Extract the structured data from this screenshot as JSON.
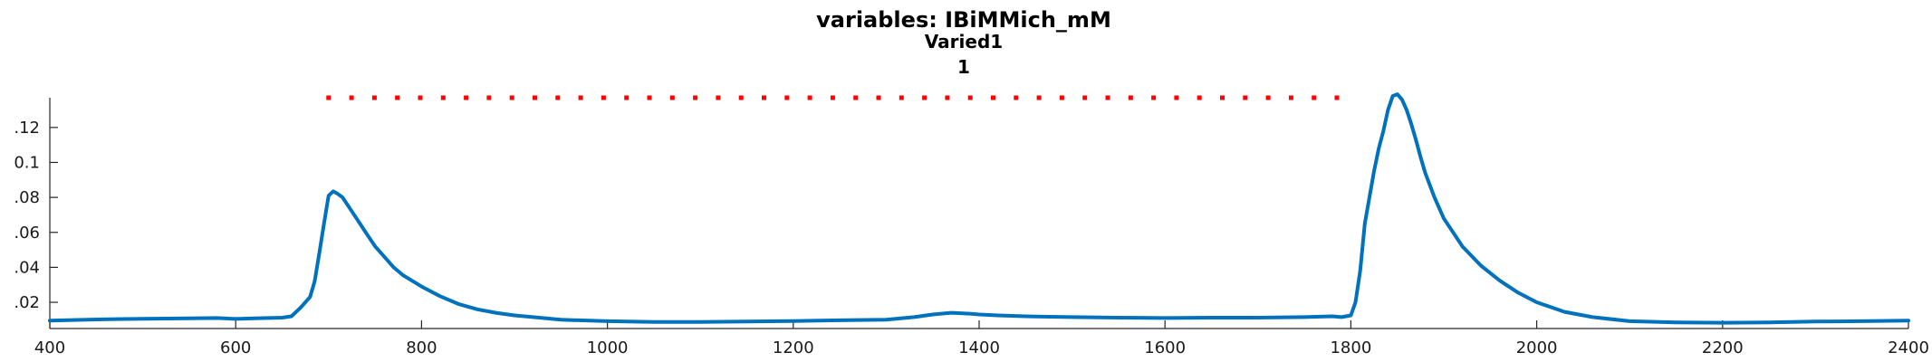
{
  "chart_data": {
    "type": "line",
    "title": "variables: IBiMMich_mM",
    "subtitle": "Varied1",
    "subtitle2": "1",
    "xlabel": "",
    "ylabel": "",
    "xlim": [
      400,
      2400
    ],
    "ylim": [
      0.005,
      0.137
    ],
    "xticks": [
      400,
      600,
      800,
      1000,
      1200,
      1400,
      1600,
      1800,
      2000,
      2200,
      2400
    ],
    "yticks": [
      0.02,
      0.04,
      0.06,
      0.08,
      0.1,
      0.12
    ],
    "ytick_labels": [
      ".02",
      ".04",
      ".06",
      ".08",
      "0.1",
      ".12"
    ],
    "grid": false,
    "series": [
      {
        "color": "#0072BD",
        "style": "solid",
        "x": [
          400,
          450,
          500,
          550,
          580,
          600,
          620,
          650,
          660,
          670,
          680,
          685,
          690,
          695,
          700,
          705,
          710,
          715,
          720,
          730,
          740,
          750,
          760,
          770,
          780,
          800,
          820,
          840,
          860,
          880,
          900,
          920,
          950,
          1000,
          1050,
          1100,
          1150,
          1200,
          1250,
          1300,
          1330,
          1350,
          1370,
          1390,
          1400,
          1420,
          1450,
          1500,
          1550,
          1600,
          1650,
          1700,
          1750,
          1780,
          1790,
          1800,
          1805,
          1810,
          1815,
          1820,
          1825,
          1830,
          1835,
          1840,
          1845,
          1850,
          1855,
          1860,
          1865,
          1870,
          1875,
          1880,
          1890,
          1900,
          1920,
          1940,
          1960,
          1980,
          2000,
          2030,
          2060,
          2100,
          2150,
          2200,
          2250,
          2300,
          2350,
          2400
        ],
        "y": [
          0.0095,
          0.0102,
          0.0106,
          0.0108,
          0.011,
          0.0105,
          0.0108,
          0.0112,
          0.012,
          0.017,
          0.023,
          0.032,
          0.048,
          0.065,
          0.081,
          0.0835,
          0.082,
          0.08,
          0.076,
          0.068,
          0.06,
          0.052,
          0.046,
          0.04,
          0.0355,
          0.029,
          0.0235,
          0.019,
          0.016,
          0.014,
          0.0125,
          0.0115,
          0.01,
          0.0092,
          0.0088,
          0.0088,
          0.009,
          0.0093,
          0.0097,
          0.01,
          0.0115,
          0.013,
          0.014,
          0.0135,
          0.013,
          0.0125,
          0.012,
          0.0115,
          0.0112,
          0.011,
          0.0112,
          0.0112,
          0.0115,
          0.012,
          0.0115,
          0.0125,
          0.02,
          0.038,
          0.065,
          0.08,
          0.095,
          0.108,
          0.118,
          0.13,
          0.138,
          0.139,
          0.136,
          0.13,
          0.122,
          0.113,
          0.103,
          0.094,
          0.08,
          0.068,
          0.052,
          0.041,
          0.0325,
          0.0255,
          0.02,
          0.0145,
          0.0115,
          0.0092,
          0.0085,
          0.0083,
          0.0085,
          0.009,
          0.0092,
          0.0095
        ]
      },
      {
        "color": "#FF0000",
        "style": "dotted",
        "x": [
          700,
          1785
        ],
        "y": [
          0.137,
          0.137
        ]
      }
    ]
  }
}
